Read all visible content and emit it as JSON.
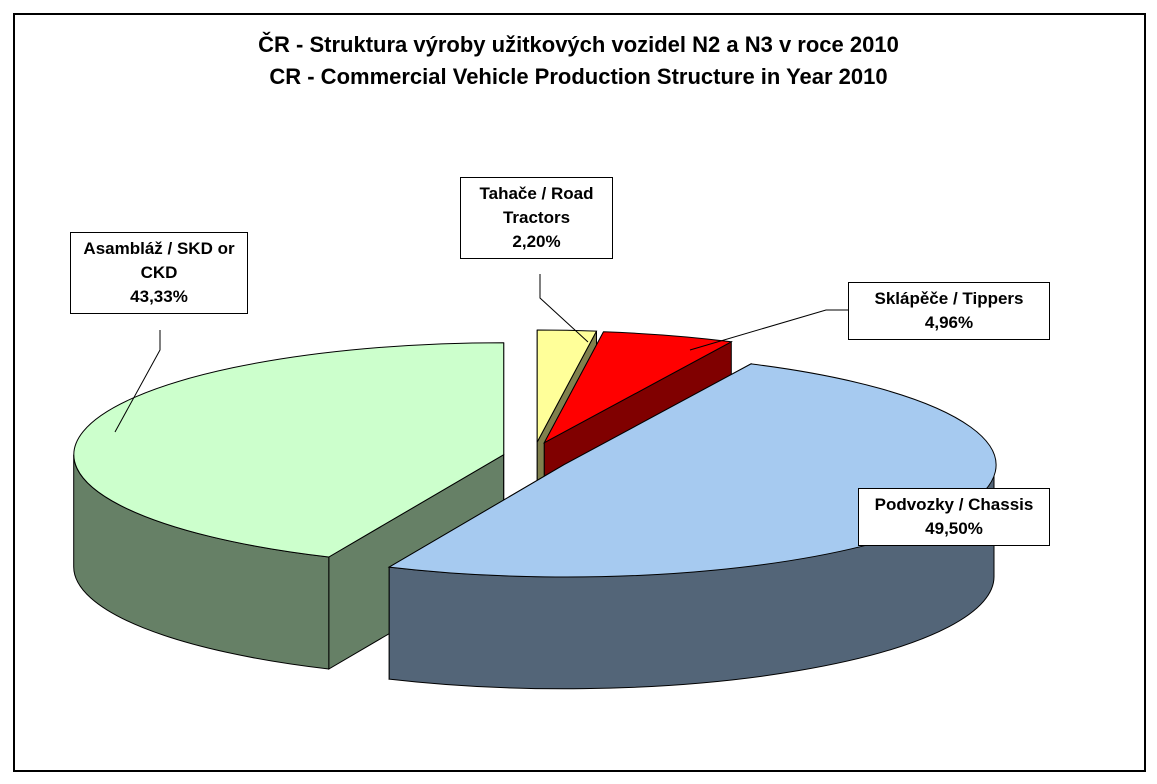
{
  "chart_data": {
    "type": "pie3d",
    "title": "ČR - Struktura výroby užitkových vozidel N2 a N3 v roce 2010",
    "subtitle": "CR - Commercial Vehicle Production Structure in Year 2010",
    "categories": [
      "Tahače / Road Tractors",
      "Sklápěče / Tippers",
      "Podvozky / Chassis",
      "Asambláž / SKD or CKD"
    ],
    "values": [
      2.2,
      4.96,
      49.5,
      43.33
    ],
    "value_labels": [
      "2,20%",
      "4,96%",
      "49,50%",
      "43,33%"
    ],
    "colors": [
      "#ffff99",
      "#ff0000",
      "#a6caf0",
      "#ccffcc"
    ]
  }
}
